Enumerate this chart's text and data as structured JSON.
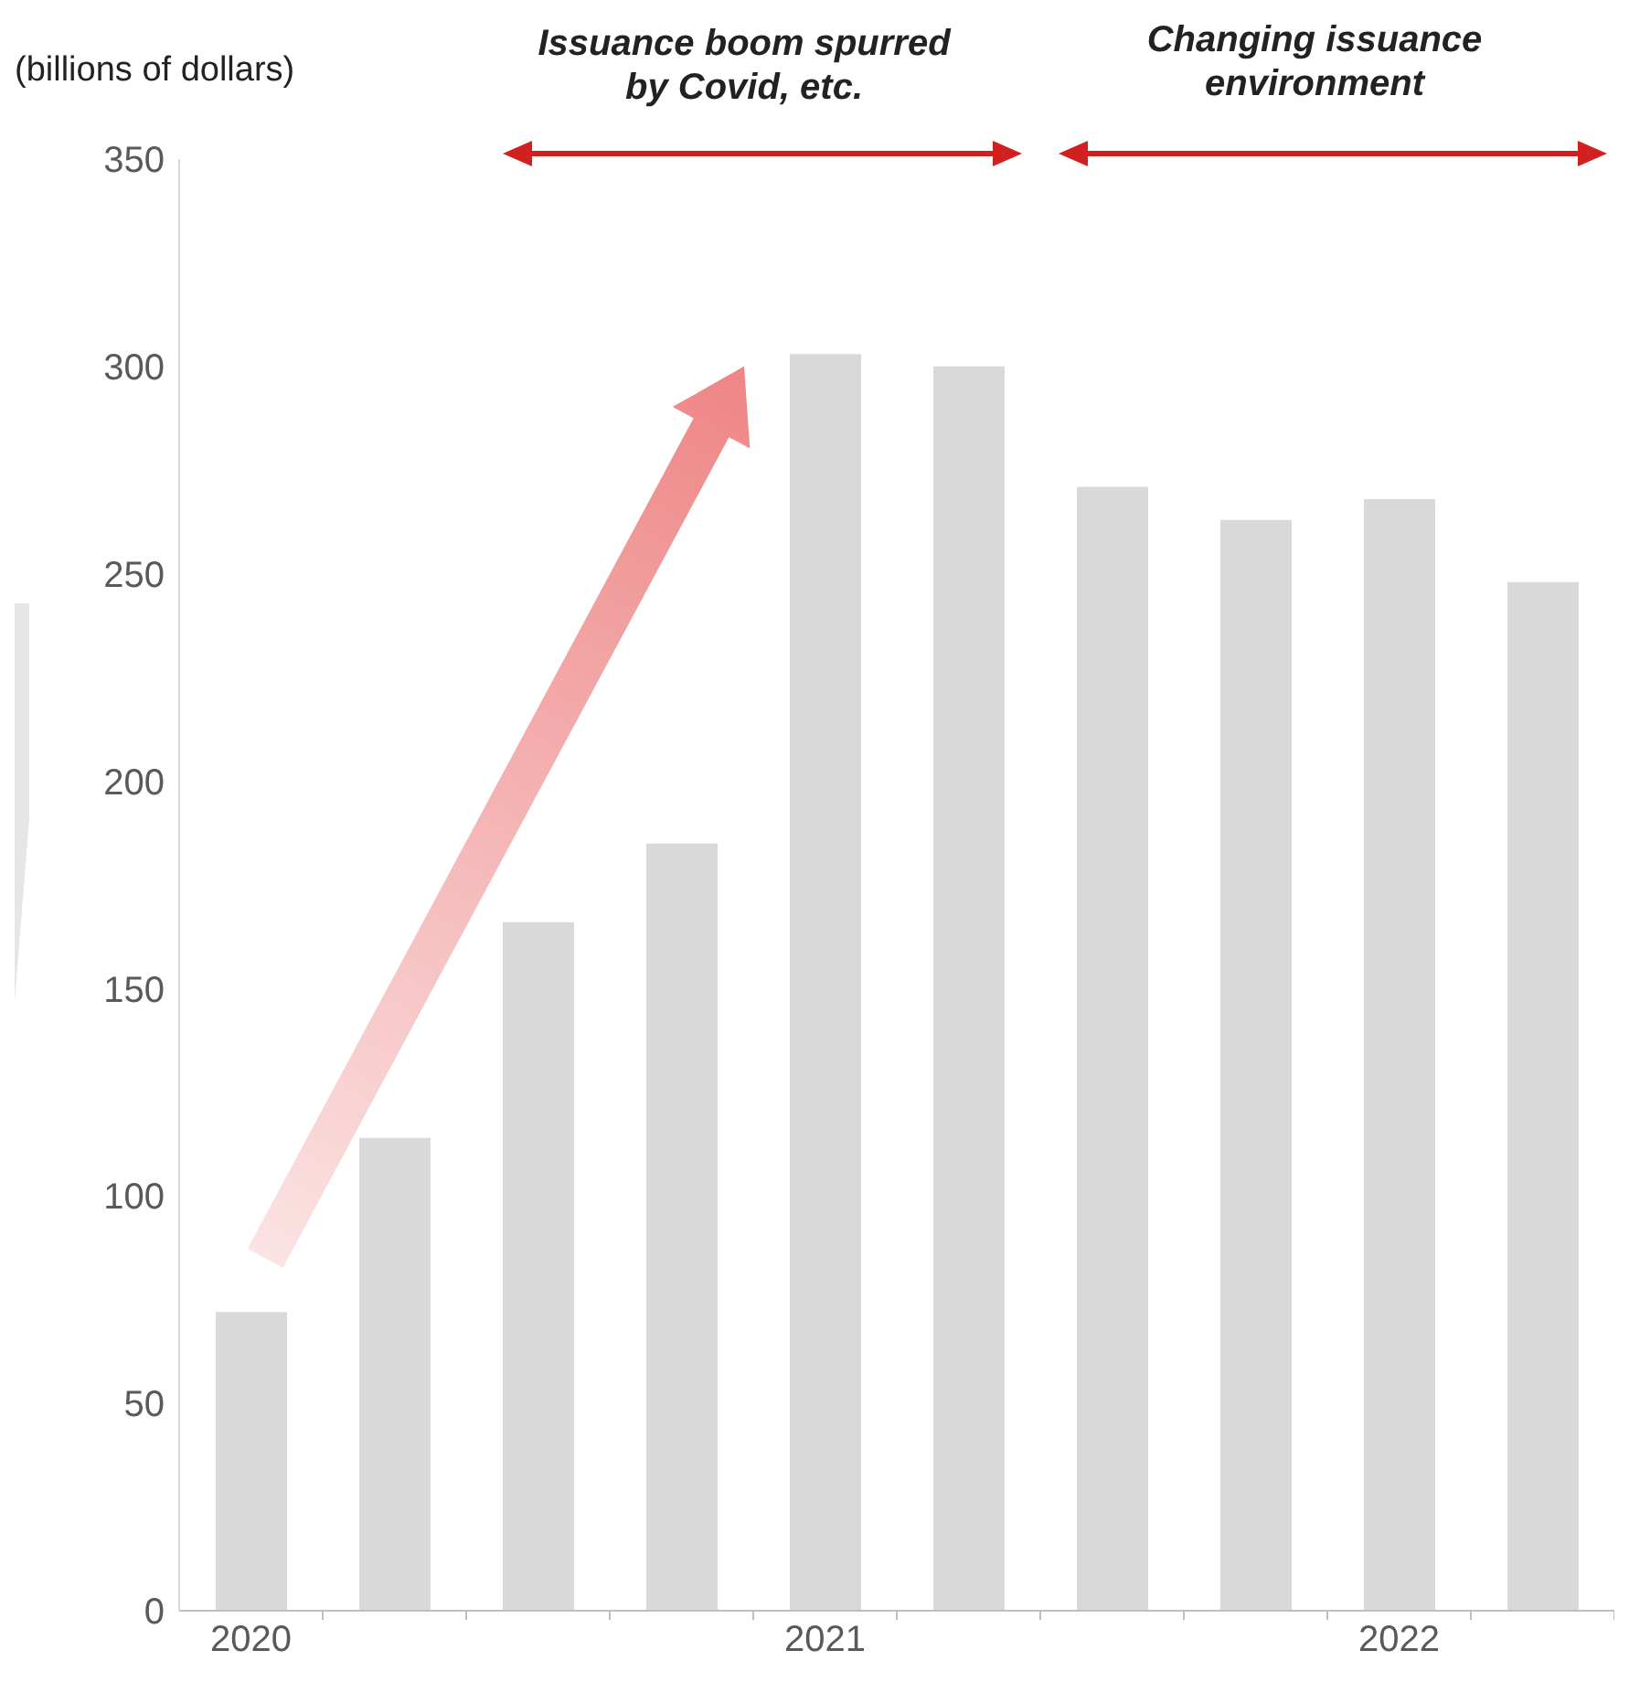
{
  "chart_data": {
    "type": "bar",
    "ylabel": "(billions of dollars)",
    "annotations": [
      "Issuance boom spurred by Covid, etc.",
      "Changing issuance environment"
    ],
    "categories": [
      "2020",
      null,
      null,
      null,
      "2021",
      null,
      null,
      null,
      "2022",
      null
    ],
    "values": [
      72,
      114,
      166,
      185,
      303,
      300,
      271,
      263,
      268,
      248
    ],
    "color": "#d9d9d9",
    "ylim": [
      0,
      350
    ],
    "yticks": [
      0,
      50,
      100,
      150,
      200,
      250,
      300,
      350
    ]
  }
}
